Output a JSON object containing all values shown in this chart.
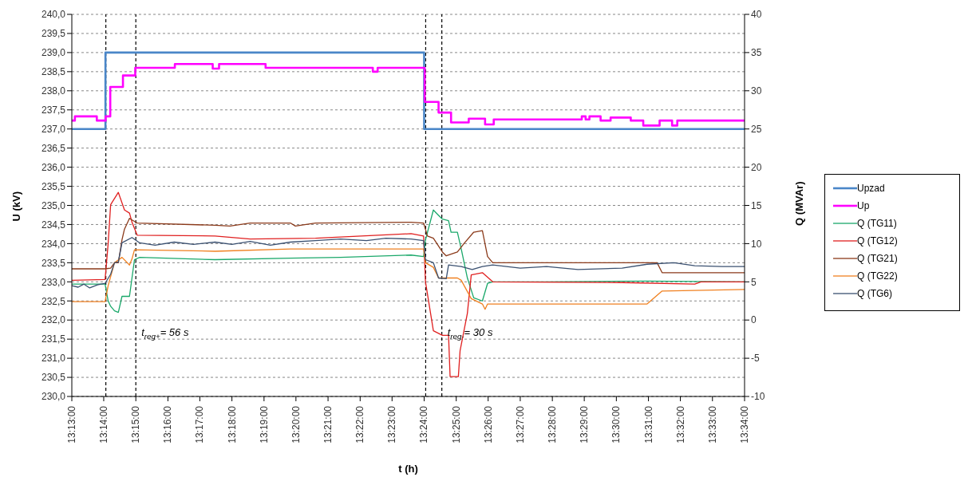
{
  "chart_data": {
    "type": "line",
    "xlabel": "t (h)",
    "ylabel": "U (kV)",
    "y2label": "Q (MVAr)",
    "xlim": [
      13.2167,
      13.5667
    ],
    "xticks": [
      {
        "value": 13.2167,
        "label": "13:13:00"
      },
      {
        "value": 13.2333,
        "label": "13:14:00"
      },
      {
        "value": 13.25,
        "label": "13:15:00"
      },
      {
        "value": 13.2667,
        "label": "13:16:00"
      },
      {
        "value": 13.2833,
        "label": "13:17:00"
      },
      {
        "value": 13.3,
        "label": "13:18:00"
      },
      {
        "value": 13.3167,
        "label": "13:19:00"
      },
      {
        "value": 13.3333,
        "label": "13:20:00"
      },
      {
        "value": 13.35,
        "label": "13:21:00"
      },
      {
        "value": 13.3667,
        "label": "13:22:00"
      },
      {
        "value": 13.3833,
        "label": "13:23:00"
      },
      {
        "value": 13.4,
        "label": "13:24:00"
      },
      {
        "value": 13.4167,
        "label": "13:25:00"
      },
      {
        "value": 13.4333,
        "label": "13:26:00"
      },
      {
        "value": 13.45,
        "label": "13:27:00"
      },
      {
        "value": 13.4667,
        "label": "13:28:00"
      },
      {
        "value": 13.4833,
        "label": "13:29:00"
      },
      {
        "value": 13.5,
        "label": "13:30:00"
      },
      {
        "value": 13.5167,
        "label": "13:31:00"
      },
      {
        "value": 13.5333,
        "label": "13:32:00"
      },
      {
        "value": 13.55,
        "label": "13:33:00"
      },
      {
        "value": 13.5667,
        "label": "13:34:00"
      }
    ],
    "ylim": [
      230,
      240
    ],
    "yticks": [
      {
        "value": 230,
        "label": "230,0"
      },
      {
        "value": 230.5,
        "label": "230,5"
      },
      {
        "value": 231,
        "label": "231,0"
      },
      {
        "value": 231.5,
        "label": "231,5"
      },
      {
        "value": 232,
        "label": "232,0"
      },
      {
        "value": 232.5,
        "label": "232,5"
      },
      {
        "value": 233,
        "label": "233,0"
      },
      {
        "value": 233.5,
        "label": "233,5"
      },
      {
        "value": 234,
        "label": "234,0"
      },
      {
        "value": 234.5,
        "label": "234,5"
      },
      {
        "value": 235,
        "label": "235,0"
      },
      {
        "value": 235.5,
        "label": "235,5"
      },
      {
        "value": 236,
        "label": "236,0"
      },
      {
        "value": 236.5,
        "label": "236,5"
      },
      {
        "value": 237,
        "label": "237,0"
      },
      {
        "value": 237.5,
        "label": "237,5"
      },
      {
        "value": 238,
        "label": "238,0"
      },
      {
        "value": 238.5,
        "label": "238,5"
      },
      {
        "value": 239,
        "label": "239,0"
      },
      {
        "value": 239.5,
        "label": "239,5"
      },
      {
        "value": 240,
        "label": "240,0"
      }
    ],
    "y2lim": [
      -10,
      40
    ],
    "y2ticks": [
      -10,
      -5,
      0,
      5,
      10,
      15,
      20,
      25,
      30,
      35,
      40
    ],
    "grid": "y",
    "legend": "right",
    "marker": "none",
    "line_style": "solid",
    "ref_lines": [
      {
        "axis": "x",
        "value": 13.2344,
        "label": null,
        "color": "#000000",
        "line_style": "dashed"
      },
      {
        "axis": "x",
        "value": 13.25,
        "label": null,
        "color": "#000000",
        "line_style": "dashed"
      },
      {
        "axis": "x",
        "value": 13.4008,
        "label": null,
        "color": "#000000",
        "line_style": "dashed"
      },
      {
        "axis": "x",
        "value": 13.4092,
        "label": null,
        "color": "#000000",
        "line_style": "dashed"
      }
    ],
    "annotations": [
      {
        "text": "t$_{reg+}$= 56 s",
        "x": 13.25,
        "y": 231.7
      },
      {
        "text": "t$_{reg-}$= 30 s",
        "x": 13.4092,
        "y": 231.7
      }
    ],
    "series": [
      {
        "name": "Upzad",
        "type": "step",
        "color": "#4a86c8",
        "x": [
          13.2167,
          13.2342,
          13.4,
          13.5667
        ],
        "values": [
          237,
          239,
          237,
          237
        ]
      },
      {
        "name": "Up",
        "type": "step",
        "color": "#ff00ff",
        "x": [
          13.2167,
          13.2183,
          13.2297,
          13.2343,
          13.2367,
          13.2433,
          13.2497,
          13.2703,
          13.29,
          13.2933,
          13.3175,
          13.3733,
          13.3758,
          13.4003,
          13.4075,
          13.414,
          13.4232,
          13.4317,
          13.4362,
          13.482,
          13.484,
          13.486,
          13.4918,
          13.497,
          13.5075,
          13.514,
          13.5225,
          13.529,
          13.5317,
          13.5667
        ],
        "values": [
          237.22,
          237.33,
          237.22,
          237.33,
          238.1,
          238.4,
          238.6,
          238.7,
          238.58,
          238.7,
          238.6,
          238.5,
          238.6,
          237.71,
          237.43,
          237.17,
          237.27,
          237.12,
          237.25,
          237.33,
          237.25,
          237.33,
          237.22,
          237.3,
          237.22,
          237.09,
          237.22,
          237.09,
          237.22,
          237.22
        ]
      },
      {
        "name": "Q (TG11)",
        "axis": "y2",
        "color": "#1aa86a",
        "x": [
          13.2167,
          13.234,
          13.2356,
          13.2369,
          13.2389,
          13.2409,
          13.2428,
          13.2467,
          13.248,
          13.2493,
          13.252,
          13.2912,
          13.3304,
          13.3565,
          13.3932,
          13.3997,
          13.4007,
          13.4048,
          13.4075,
          13.4095,
          13.4127,
          13.414,
          13.4173,
          13.4193,
          13.4225,
          13.4258,
          13.4303,
          13.433,
          13.4357,
          13.4637,
          13.516,
          13.5667
        ],
        "values": [
          4.7,
          4.7,
          2.5,
          1.8,
          1.2,
          1.0,
          3.1,
          3.1,
          5.5,
          7.9,
          8.2,
          7.9,
          8.1,
          8.2,
          8.5,
          8.3,
          10.5,
          14.4,
          13.7,
          13.2,
          13.0,
          11.5,
          11.5,
          9.3,
          5.5,
          2.9,
          2.5,
          4.8,
          5.0,
          5.0,
          5.1,
          5.0
        ]
      },
      {
        "name": "Q (TG12)",
        "axis": "y2",
        "color": "#e02020",
        "x": [
          13.2167,
          13.234,
          13.2356,
          13.2369,
          13.2409,
          13.2441,
          13.2467,
          13.248,
          13.2507,
          13.2912,
          13.3095,
          13.3435,
          13.3932,
          13.3997,
          13.4007,
          13.4048,
          13.4095,
          13.4127,
          13.4135,
          13.4178,
          13.4187,
          13.4225,
          13.4245,
          13.4303,
          13.4357,
          13.503,
          13.5408,
          13.544,
          13.5667
        ],
        "values": [
          5.2,
          5.3,
          10,
          15.1,
          16.7,
          14.4,
          14.0,
          12.8,
          11.1,
          11.0,
          10.6,
          10.7,
          11.3,
          11.0,
          5,
          -1.4,
          -2.0,
          -2.0,
          -7.4,
          -7.4,
          -4.0,
          0.9,
          5.9,
          6.2,
          5.0,
          4.9,
          4.7,
          5.0,
          5.0
        ]
      },
      {
        "name": "Q (TG21)",
        "axis": "y2",
        "color": "#8b3a1a",
        "x": [
          13.2167,
          13.234,
          13.2369,
          13.2389,
          13.2409,
          13.2428,
          13.2441,
          13.2467,
          13.248,
          13.2507,
          13.2912,
          13.299,
          13.3095,
          13.3304,
          13.333,
          13.3435,
          13.3932,
          13.3997,
          13.4017,
          13.4048,
          13.4095,
          13.4115,
          13.4173,
          13.4207,
          13.4258,
          13.4303,
          13.433,
          13.4357,
          13.5212,
          13.5238,
          13.5667
        ],
        "values": [
          6.7,
          6.7,
          6.8,
          7.5,
          7.5,
          10.5,
          11.9,
          13.3,
          13.1,
          12.7,
          12.4,
          12.3,
          12.7,
          12.7,
          12.3,
          12.7,
          12.8,
          12.7,
          11.0,
          10.7,
          8.9,
          8.4,
          8.9,
          10.0,
          11.5,
          11.7,
          8.3,
          7.5,
          7.5,
          6.2,
          6.2
        ]
      },
      {
        "name": "Q (TG22)",
        "axis": "y2",
        "color": "#f08020",
        "x": [
          13.2167,
          13.234,
          13.2356,
          13.2389,
          13.2428,
          13.2467,
          13.248,
          13.2493,
          13.2912,
          13.3304,
          13.3932,
          13.3997,
          13.4007,
          13.4048,
          13.4075,
          13.4173,
          13.4193,
          13.4245,
          13.4303,
          13.4317,
          13.433,
          13.516,
          13.5238,
          13.5667
        ],
        "values": [
          2.4,
          2.4,
          4.5,
          7.5,
          8.2,
          7.2,
          8.0,
          9.2,
          9.0,
          9.3,
          9.3,
          9.3,
          7.5,
          6.9,
          5.5,
          5.5,
          5.2,
          2.8,
          2.1,
          1.4,
          2.1,
          2.1,
          3.8,
          4.0
        ]
      },
      {
        "name": "Q (TG6)",
        "axis": "y2",
        "color": "#3a5070",
        "x": [
          13.2167,
          13.22,
          13.223,
          13.226,
          13.23,
          13.234,
          13.2369,
          13.2389,
          13.2409,
          13.2428,
          13.248,
          13.252,
          13.26,
          13.27,
          13.28,
          13.2912,
          13.3,
          13.3095,
          13.32,
          13.3304,
          13.3435,
          13.3565,
          13.37,
          13.38,
          13.3932,
          13.3997,
          13.4007,
          13.4048,
          13.4075,
          13.4115,
          13.4127,
          13.4193,
          13.425,
          13.4303,
          13.4357,
          13.45,
          13.4637,
          13.48,
          13.503,
          13.516,
          13.53,
          13.5408,
          13.555,
          13.5667
        ],
        "values": [
          4.5,
          4.3,
          4.7,
          4.2,
          4.6,
          4.8,
          6.0,
          7.5,
          7.6,
          10.1,
          10.8,
          10.1,
          9.8,
          10.2,
          9.9,
          10.2,
          9.9,
          10.3,
          9.8,
          10.2,
          10.4,
          10.6,
          10.4,
          10.7,
          10.6,
          10.4,
          7.9,
          7.5,
          5.5,
          5.4,
          7.2,
          7.0,
          6.6,
          7.0,
          7.2,
          6.8,
          7.0,
          6.6,
          6.8,
          7.3,
          7.5,
          7.1,
          7.0,
          7.0
        ]
      }
    ]
  }
}
